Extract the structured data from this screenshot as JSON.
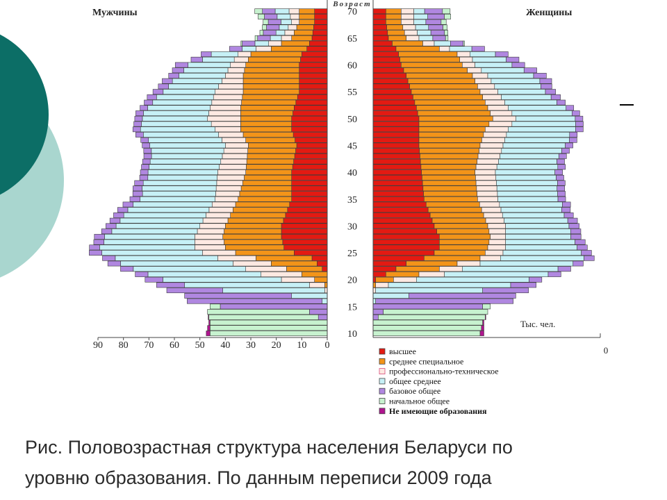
{
  "slide": {
    "caption_line1": "Рис. Половозрастная структура населения Беларуси по",
    "caption_line2": "уровню образования.  По данным переписи 2009 года"
  },
  "chart_data": {
    "type": "bar",
    "subtype": "population pyramid (stacked horizontal bars)",
    "age_axis_label": "Возраст",
    "age_ticks": [
      10,
      15,
      20,
      25,
      30,
      35,
      40,
      45,
      50,
      55,
      60,
      65,
      70
    ],
    "unit_label": "Тыс. чел.",
    "left_label": "Мужчины",
    "right_label": "Женщины",
    "x_ticks_men": [
      90,
      80,
      70,
      60,
      50,
      40,
      30,
      20,
      10,
      0
    ],
    "x_ticks_women": [
      0
    ],
    "xlim": [
      0,
      90
    ],
    "legend_position": "bottom-center",
    "series": [
      {
        "name": "высшее",
        "color": "#e31a12"
      },
      {
        "name": "среднее специальное",
        "color": "#f39419"
      },
      {
        "name": "профессионально-техническое",
        "color": "#fde9e2"
      },
      {
        "name": "общее среднее",
        "color": "#c6f0f6"
      },
      {
        "name": "базовое общее",
        "color": "#b087e0"
      },
      {
        "name": "начальное общее",
        "color": "#c7f2cf"
      },
      {
        "name": "Не имеющие образования",
        "color": "#b0148f"
      }
    ],
    "key_ages": [
      10,
      12,
      14,
      15,
      16,
      17,
      18,
      19,
      20,
      21,
      22,
      23,
      24,
      25,
      26,
      28,
      30,
      35,
      40,
      45,
      48,
      50,
      52,
      55,
      58,
      60,
      62,
      63,
      65,
      68,
      70
    ],
    "men": [
      [
        0,
        0,
        0,
        0,
        0,
        46,
        1.5
      ],
      [
        0,
        0,
        0,
        0,
        0,
        46,
        0.5
      ],
      [
        0,
        0,
        0,
        0,
        7,
        40,
        0
      ],
      [
        0,
        0,
        0,
        0,
        42,
        4,
        0
      ],
      [
        0,
        0,
        0,
        2,
        53,
        0,
        0
      ],
      [
        0,
        0,
        0,
        14,
        42,
        0,
        0
      ],
      [
        0,
        0,
        1,
        40,
        22,
        0,
        0
      ],
      [
        0,
        1,
        6,
        49,
        11,
        0,
        0
      ],
      [
        0,
        5,
        13,
        47,
        7,
        0,
        0
      ],
      [
        0,
        10,
        16,
        45,
        5,
        0,
        0
      ],
      [
        2,
        14,
        16,
        44,
        5,
        0,
        0
      ],
      [
        4,
        18,
        15,
        44,
        5,
        0,
        0
      ],
      [
        6,
        22,
        15,
        41,
        5,
        0,
        0
      ],
      [
        13,
        23,
        13,
        39,
        5,
        0,
        0
      ],
      [
        17,
        23,
        12,
        37,
        4,
        0,
        0
      ],
      [
        18,
        23,
        11,
        35,
        4,
        0,
        0
      ],
      [
        18,
        22,
        10,
        33,
        4,
        0,
        0
      ],
      [
        14,
        21,
        9,
        30,
        4,
        0,
        0
      ],
      [
        14,
        18,
        11,
        27,
        3,
        0,
        0
      ],
      [
        12,
        19,
        9,
        29,
        3,
        0,
        0
      ],
      [
        14,
        20,
        10,
        29,
        3,
        0,
        0
      ],
      [
        14,
        20,
        13,
        26,
        3,
        0,
        0
      ],
      [
        13,
        21,
        12,
        25,
        3,
        0,
        0
      ],
      [
        11,
        22,
        11,
        21,
        4,
        0,
        0
      ],
      [
        11,
        22,
        7,
        19,
        4,
        0,
        0
      ],
      [
        11,
        21,
        6,
        16,
        5,
        0,
        0
      ],
      [
        10,
        20,
        5,
        10,
        4,
        0,
        0
      ],
      [
        8,
        14,
        6,
        6,
        5,
        0,
        0
      ],
      [
        6,
        8,
        4,
        4,
        5,
        1,
        0
      ],
      [
        5,
        6,
        3,
        4,
        5,
        2,
        0
      ],
      [
        5,
        6,
        4,
        5,
        5,
        3,
        0
      ]
    ],
    "women": [
      [
        0,
        0,
        0,
        0,
        0,
        42,
        1.5
      ],
      [
        0,
        0,
        0,
        0,
        0,
        43,
        0.5
      ],
      [
        0,
        0,
        0,
        0,
        4,
        41,
        0
      ],
      [
        0,
        0,
        0,
        0,
        43,
        3,
        0
      ],
      [
        0,
        0,
        0,
        1,
        54,
        0,
        0
      ],
      [
        0,
        0,
        0,
        14,
        42,
        0,
        0
      ],
      [
        0,
        0,
        1,
        42,
        18,
        0,
        0
      ],
      [
        0,
        1,
        5,
        48,
        10,
        0,
        0
      ],
      [
        1,
        7,
        9,
        45,
        5,
        0,
        0
      ],
      [
        5,
        13,
        10,
        41,
        5,
        0,
        0
      ],
      [
        9,
        17,
        9,
        38,
        5,
        0,
        0
      ],
      [
        13,
        20,
        9,
        37,
        4,
        0,
        0
      ],
      [
        20,
        22,
        8,
        33,
        4,
        0,
        0
      ],
      [
        24,
        20,
        7,
        30,
        4,
        0,
        0
      ],
      [
        26,
        19,
        7,
        28,
        4,
        0,
        0
      ],
      [
        26,
        20,
        6,
        26,
        4,
        0,
        0
      ],
      [
        24,
        21,
        7,
        25,
        4,
        0,
        0
      ],
      [
        20,
        21,
        8,
        24,
        3,
        0,
        0
      ],
      [
        19,
        21,
        8,
        23,
        3,
        0,
        0
      ],
      [
        18,
        24,
        9,
        24,
        3,
        0,
        0
      ],
      [
        18,
        26,
        9,
        26,
        3,
        0,
        0
      ],
      [
        18,
        29,
        9,
        24,
        3,
        0,
        0
      ],
      [
        17,
        28,
        8,
        22,
        3,
        0,
        0
      ],
      [
        15,
        27,
        7,
        19,
        4,
        0,
        0
      ],
      [
        13,
        26,
        6,
        18,
        5,
        0,
        0
      ],
      [
        11,
        24,
        5,
        15,
        5,
        0,
        0
      ],
      [
        10,
        23,
        5,
        10,
        5,
        0,
        0
      ],
      [
        9,
        17,
        4,
        8,
        5,
        0,
        0
      ],
      [
        6,
        7,
        5,
        5,
        5,
        1,
        0
      ],
      [
        5,
        6,
        5,
        5,
        6,
        2,
        0
      ],
      [
        5,
        6,
        5,
        5,
        7,
        3,
        0
      ]
    ]
  }
}
